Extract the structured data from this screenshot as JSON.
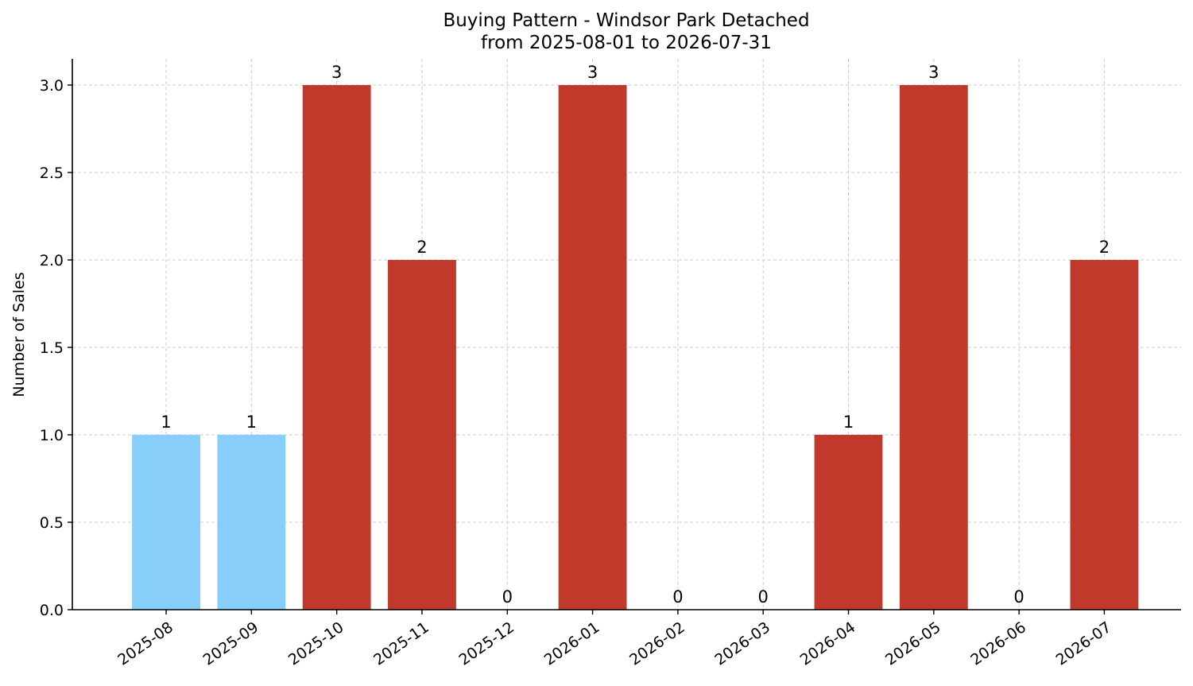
{
  "chart_data": {
    "type": "bar",
    "title": "Buying Pattern - Windsor Park Detached",
    "subtitle": "from 2025-08-01 to 2026-07-31",
    "xlabel": "",
    "ylabel": "Number of Sales",
    "categories": [
      "2025-08",
      "2025-09",
      "2025-10",
      "2025-11",
      "2025-12",
      "2026-01",
      "2026-02",
      "2026-03",
      "2026-04",
      "2026-05",
      "2026-06",
      "2026-07"
    ],
    "values": [
      1,
      1,
      3,
      2,
      0,
      3,
      0,
      0,
      1,
      3,
      0,
      2
    ],
    "data_labels": [
      "1",
      "1",
      "3",
      "2",
      "0",
      "3",
      "0",
      "0",
      "1",
      "3",
      "0",
      "2"
    ],
    "bar_colors": [
      "#87cefa",
      "#87cefa",
      "#c0392b",
      "#c0392b",
      "#c0392b",
      "#c0392b",
      "#c0392b",
      "#c0392b",
      "#c0392b",
      "#c0392b",
      "#c0392b",
      "#c0392b"
    ],
    "ylim": [
      0,
      3.15
    ],
    "yticks": [
      0,
      0.5,
      1,
      1.5,
      2,
      2.5,
      3
    ],
    "ytick_labels": [
      "0.0",
      "0.5",
      "1.0",
      "1.5",
      "2.0",
      "2.5",
      "3.0"
    ],
    "grid": true,
    "legend": "none"
  }
}
